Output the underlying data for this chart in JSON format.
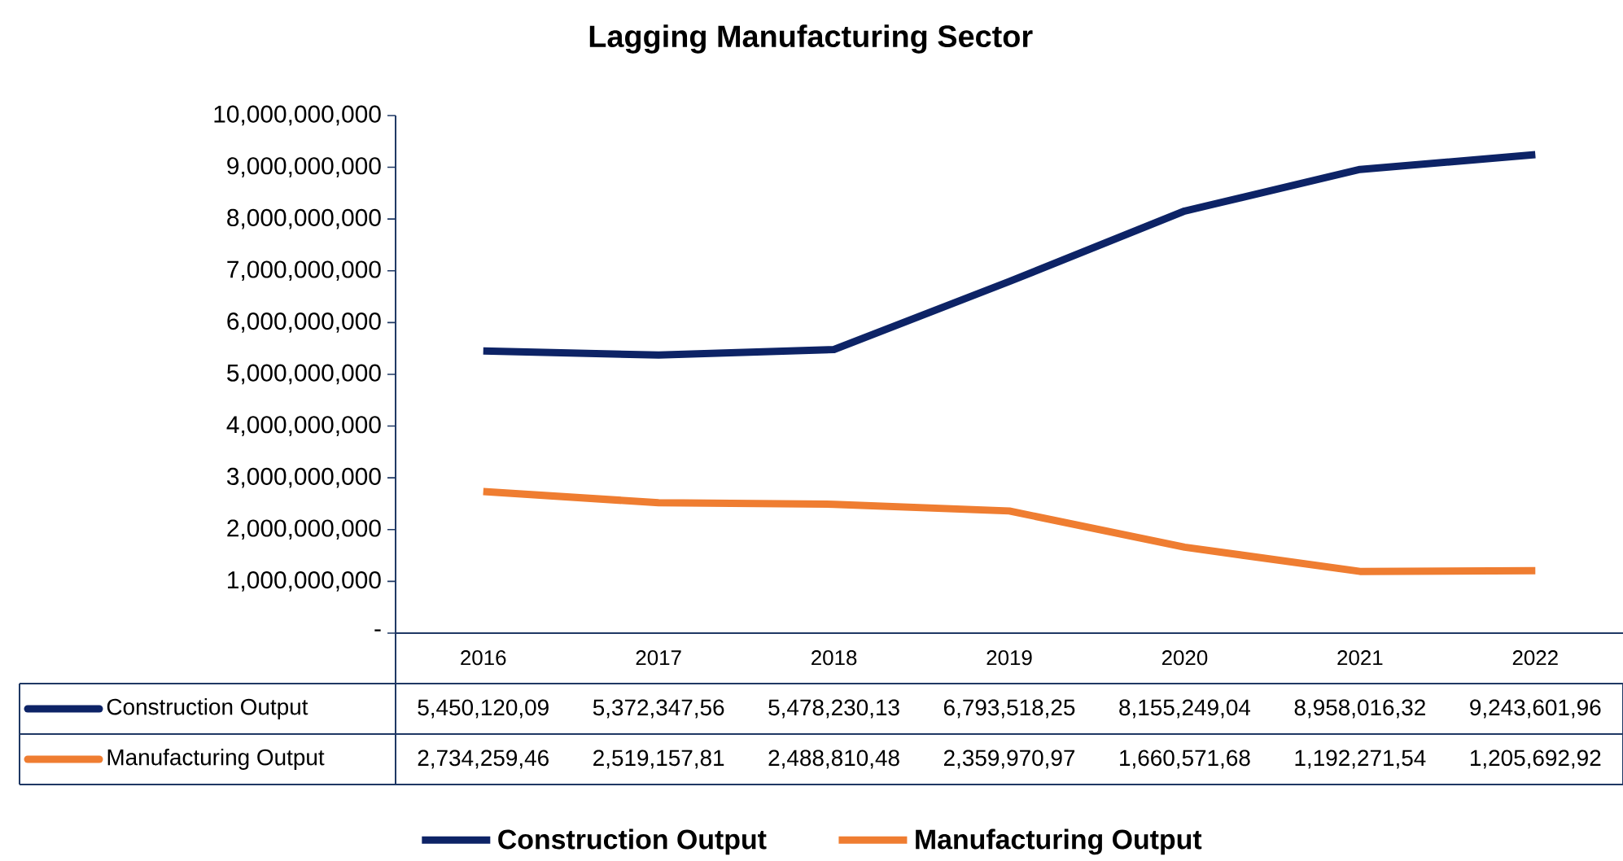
{
  "chart_data": {
    "type": "line",
    "title": "Lagging Manufacturing Sector",
    "categories": [
      "2016",
      "2017",
      "2018",
      "2019",
      "2020",
      "2021",
      "2022"
    ],
    "series": [
      {
        "name": "Construction Output",
        "color": "#0d2366",
        "values": [
          5450120090,
          5372347560,
          5478230130,
          6793518250,
          8155249040,
          8958016320,
          9243601960
        ],
        "value_labels": [
          "5,450,120,09",
          "5,372,347,56",
          "5,478,230,13",
          "6,793,518,25",
          "8,155,249,04",
          "8,958,016,32",
          "9,243,601,96"
        ]
      },
      {
        "name": "Manufacturing Output",
        "color": "#ef7d31",
        "values": [
          2734259460,
          2519157810,
          2488810480,
          2359970970,
          1660571680,
          1192271540,
          1205692920
        ],
        "value_labels": [
          "2,734,259,46",
          "2,519,157,81",
          "2,488,810,48",
          "2,359,970,97",
          "1,660,571,68",
          "1,192,271,54",
          "1,205,692,92"
        ]
      }
    ],
    "ylim": [
      0,
      10000000000
    ],
    "yticks": [
      {
        "value": 0,
        "label": "-"
      },
      {
        "value": 1000000000,
        "label": "1,000,000,000"
      },
      {
        "value": 2000000000,
        "label": "2,000,000,000"
      },
      {
        "value": 3000000000,
        "label": "3,000,000,000"
      },
      {
        "value": 4000000000,
        "label": "4,000,000,000"
      },
      {
        "value": 5000000000,
        "label": "5,000,000,000"
      },
      {
        "value": 6000000000,
        "label": "6,000,000,000"
      },
      {
        "value": 7000000000,
        "label": "7,000,000,000"
      },
      {
        "value": 8000000000,
        "label": "8,000,000,000"
      },
      {
        "value": 9000000000,
        "label": "9,000,000,000"
      },
      {
        "value": 10000000000,
        "label": "10,000,000,000"
      }
    ],
    "legend": "bottom",
    "marker": "none",
    "line_style": "solid"
  }
}
